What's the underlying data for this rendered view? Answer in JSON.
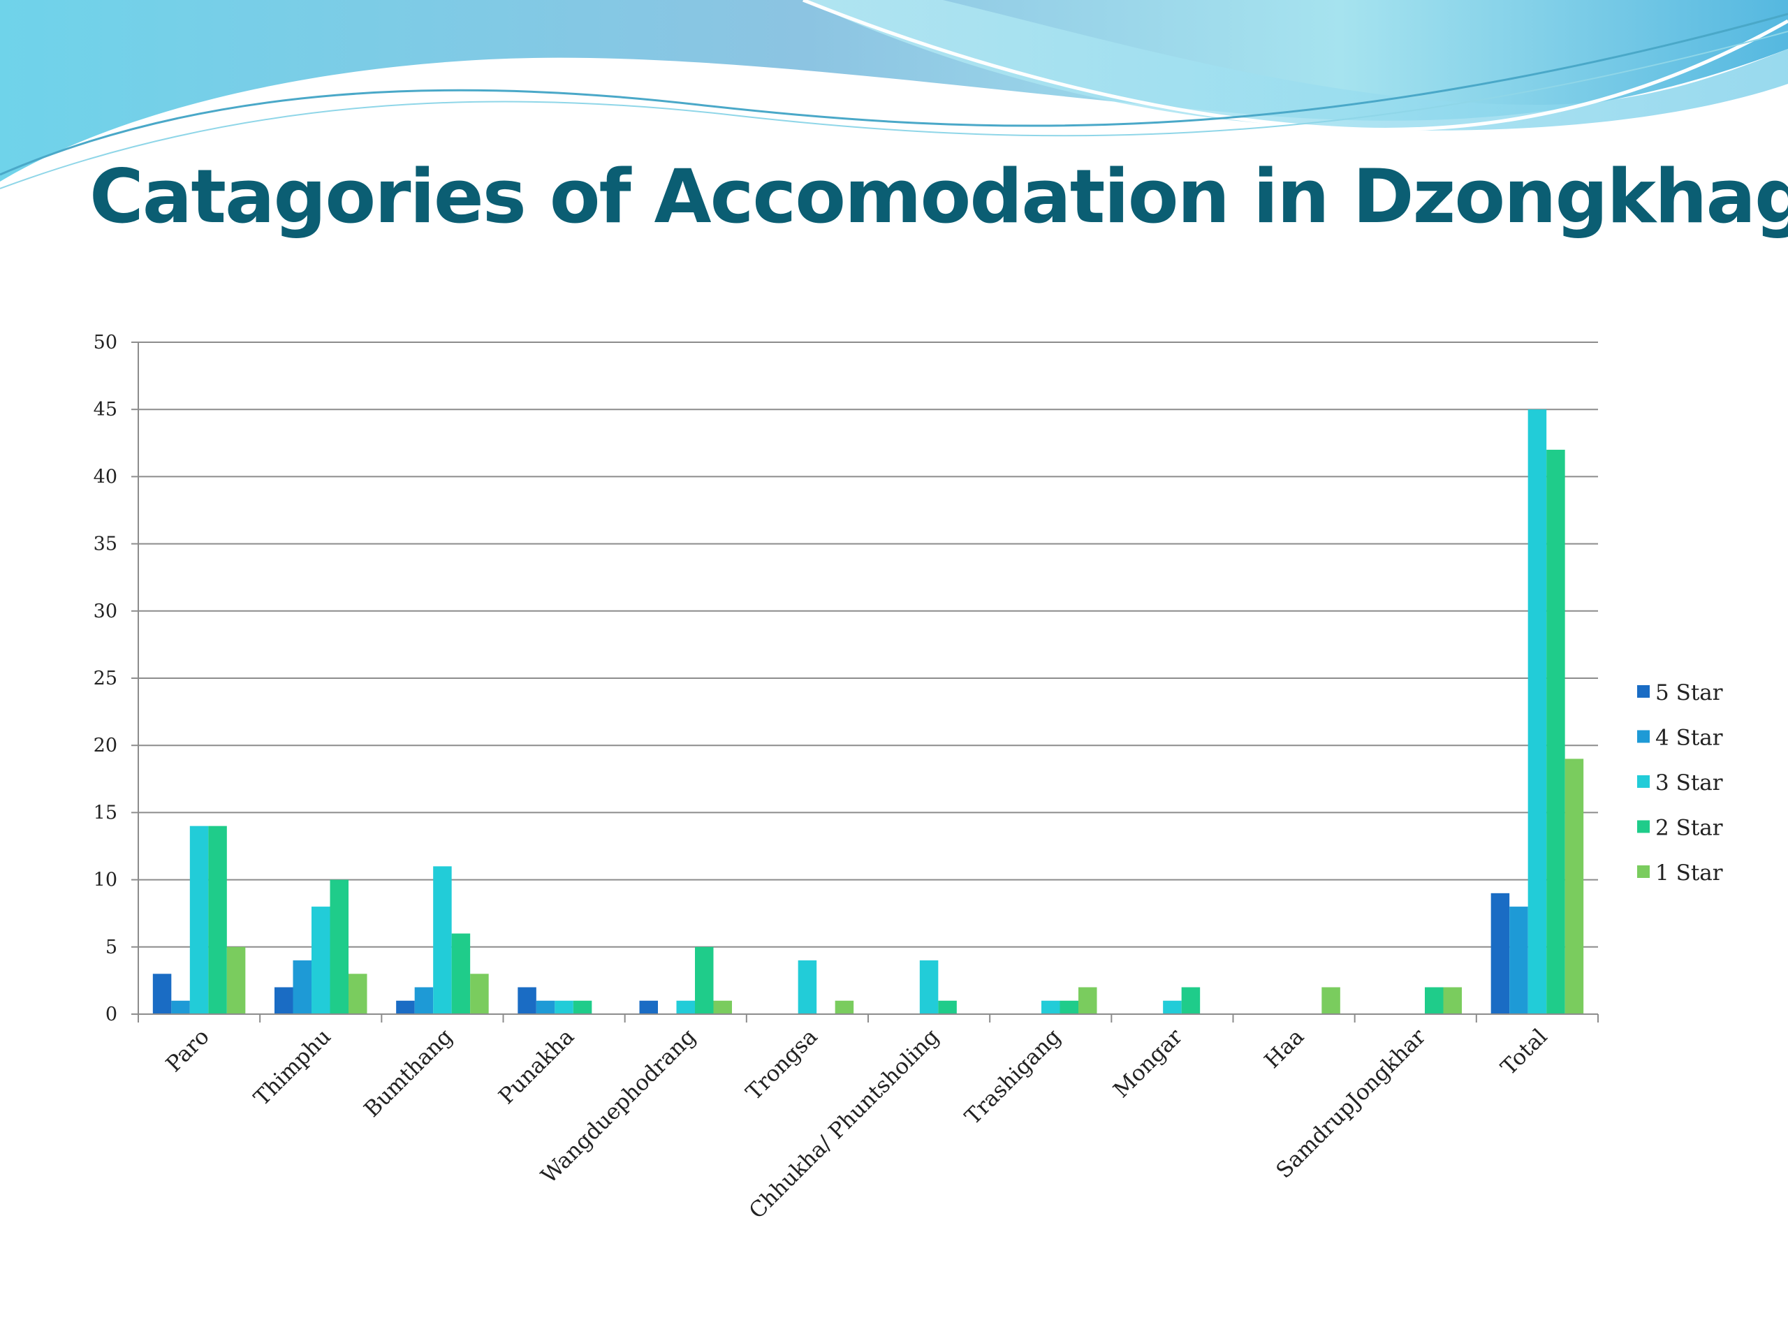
{
  "slide": {
    "title": "Catagories of Accomodation in Dzongkhags"
  },
  "chart_data": {
    "type": "bar",
    "title": "",
    "xlabel": "",
    "ylabel": "",
    "ylim": [
      0,
      50
    ],
    "yticks": [
      0,
      5,
      10,
      15,
      20,
      25,
      30,
      35,
      40,
      45,
      50
    ],
    "grid": true,
    "legend_position": "right",
    "categories": [
      "Paro",
      "Thimphu",
      "Bumthang",
      "Punakha",
      "Wangduephodrang",
      "Trongsa",
      "Chhukha/ Phuntsholing",
      "Trashigang",
      "Mongar",
      "Haa",
      "SamdrupJongkhar",
      "Total"
    ],
    "series": [
      {
        "name": "5 Star",
        "color": "#1a6cc4",
        "values": [
          3,
          2,
          1,
          2,
          1,
          0,
          0,
          0,
          0,
          0,
          0,
          9
        ]
      },
      {
        "name": "4 Star",
        "color": "#1e9ad6",
        "values": [
          1,
          4,
          2,
          1,
          0,
          0,
          0,
          0,
          0,
          0,
          0,
          8
        ]
      },
      {
        "name": "3 Star",
        "color": "#22ccd8",
        "values": [
          14,
          8,
          11,
          1,
          1,
          4,
          4,
          1,
          1,
          0,
          0,
          45
        ]
      },
      {
        "name": "2 Star",
        "color": "#1fcc8a",
        "values": [
          14,
          10,
          6,
          1,
          5,
          0,
          1,
          1,
          2,
          0,
          2,
          42
        ]
      },
      {
        "name": "1 Star",
        "color": "#7acc5e",
        "values": [
          5,
          3,
          3,
          0,
          1,
          1,
          0,
          2,
          0,
          2,
          2,
          19
        ]
      }
    ]
  }
}
